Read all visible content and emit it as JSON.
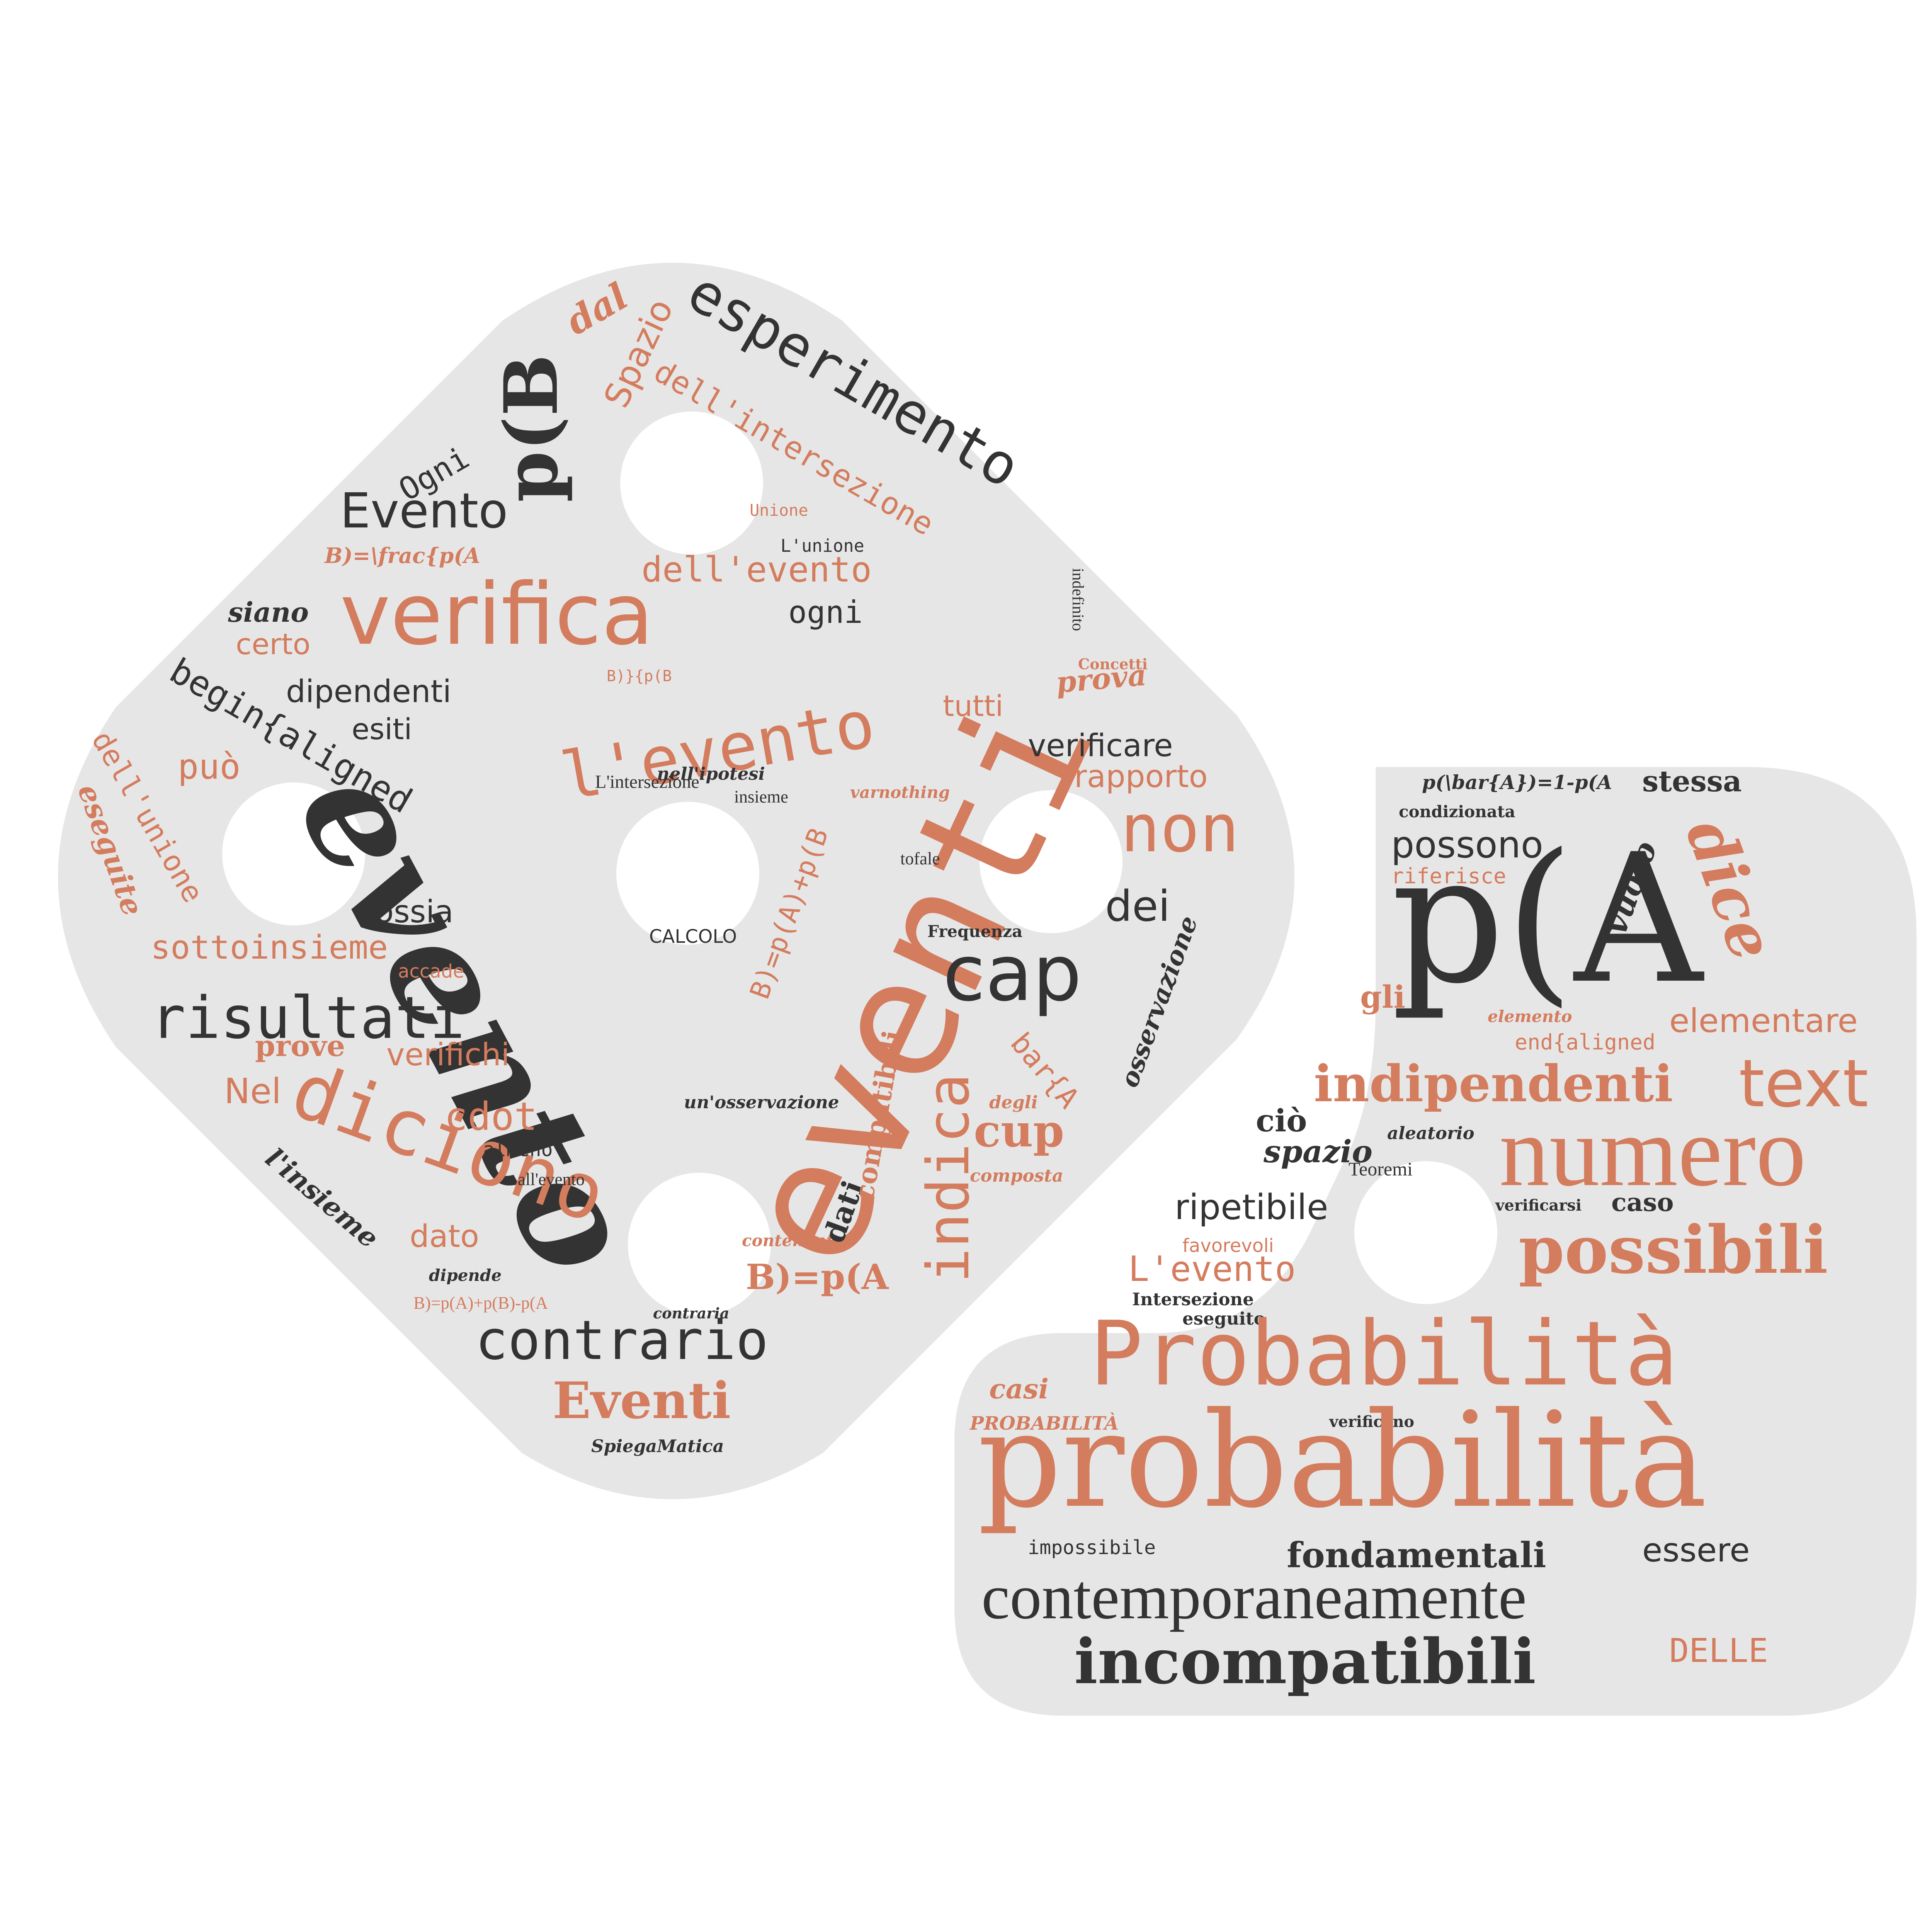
{
  "colors": {
    "accent": "#d47c5e",
    "dark": "#333333",
    "shape": "#e6e6e6",
    "background": "#ffffff"
  },
  "words": {
    "w1": "evento",
    "w2": "eventi",
    "w3": "verifica",
    "w4": "l'evento",
    "w5": "esperimento",
    "w6": "p(B",
    "w7": "Evento",
    "w8": "dell'intersezione",
    "w9": "Spazio",
    "w10": "dal",
    "w11": "Ogni",
    "w12": "Unione",
    "w13": "L'unione",
    "w14": "dell'evento",
    "w15": "ogni",
    "w16": "B)=\\frac{p(A",
    "w17": "siano",
    "w18": "certo",
    "w19": "begin{aligned",
    "w20": "dipendenti",
    "w21": "esiti",
    "w22": "B)}{p(B",
    "w23": "tutti",
    "w24": "prova",
    "w25": "Concetti",
    "w26": "indefinito",
    "w27": "verificare",
    "w28": "rapporto",
    "w29": "non",
    "w30": "dei",
    "w31": "cap",
    "w32": "osservazione",
    "w33": "Frequenza",
    "w34": "tofale",
    "w35": "varnothing",
    "w36": "B)=p(A)+p(B",
    "w37": "nell'ipotesi",
    "w38": "L'intersezione",
    "w39": "insieme",
    "w40": "può",
    "w41": "dell'unione",
    "w42": "eseguite",
    "w43": "ossia",
    "w44": "sottoinsieme",
    "w45": "accade",
    "w46": "risultati",
    "w47": "CALCOLO",
    "w48": "prove",
    "w49": "verifichi",
    "w50": "Nel",
    "w51": "diciono",
    "w52": "cdot",
    "w53": "almeno",
    "w54": "all'evento",
    "w55": "dato",
    "w56": "l'insieme",
    "w57": "dipende",
    "w58": "B)=p(A)+p(B)-p(A",
    "w59": "contrario",
    "w60": "contraria",
    "w61": "Eventi",
    "w62": "SpiegaMatica",
    "w63": "B)=p(A",
    "w64": "contenente",
    "w65": "dati",
    "w66": "compatibili",
    "w67": "indica",
    "w68": "un'osservazione",
    "w69": "cup",
    "w70": "degli",
    "w71": "bar{A",
    "w72": "composta",
    "r1": "p(A",
    "r2": "p(\\bar{A})=1-p(A",
    "r3": "stessa",
    "r4": "condizionata",
    "r5": "possono",
    "r6": "riferisce",
    "r7": "vuoto",
    "r8": "dice",
    "r9": "gli",
    "r10": "elemento",
    "r11": "end{aligned",
    "r12": "elementare",
    "r13": "indipendenti",
    "r14": "text",
    "r15": "ciò",
    "r16": "spazio",
    "r17": "aleatorio",
    "r18": "Teoremi",
    "r19": "numero",
    "r20": "ripetibile",
    "r21": "verificarsi",
    "r22": "caso",
    "r23": "possibili",
    "r24": "favorevoli",
    "r25": "L'evento",
    "r26": "Intersezione",
    "r27": "eseguito",
    "r28": "Probabilità",
    "r29": "casi",
    "r30": "PROBABILITÀ",
    "r31": "verificano",
    "r32": "probabilità",
    "r33": "impossibile",
    "r34": "fondamentali",
    "r35": "essere",
    "r36": "contemporaneamente",
    "r37": "incompatibili",
    "r38": "DELLE"
  }
}
